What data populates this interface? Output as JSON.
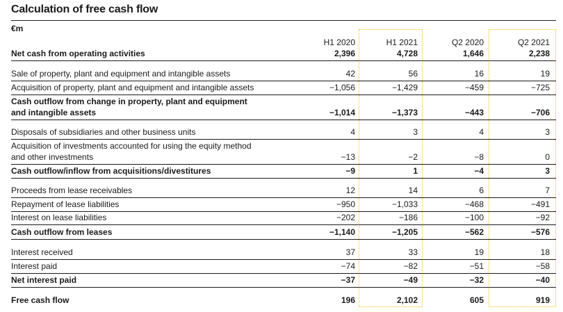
{
  "title": "Calculation of free cash flow",
  "unit": "€m",
  "columns": [
    "H1 2020",
    "H1 2021",
    "Q2 2020",
    "Q2 2021"
  ],
  "rows": [
    {
      "label": "Net cash from operating activities",
      "values": [
        "2,396",
        "4,728",
        "1,646",
        "2,238"
      ],
      "bold": true
    },
    {
      "label": "Sale of property, plant and equipment and intangible assets",
      "values": [
        "42",
        "56",
        "16",
        "19"
      ],
      "bold": false
    },
    {
      "label": "Acquisition of property, plant and equipment and intangible assets",
      "values": [
        "−1,056",
        "−1,429",
        "−459",
        "−725"
      ],
      "bold": false
    },
    {
      "label": "Cash outflow from change in property, plant and equipment",
      "label2": "and intangible assets",
      "values": [
        "−1,014",
        "−1,373",
        "−443",
        "−706"
      ],
      "bold": true
    },
    {
      "label": "Disposals of subsidiaries and other business units",
      "values": [
        "4",
        "3",
        "4",
        "3"
      ],
      "bold": false
    },
    {
      "label": "Acquisition of investments accounted for using the equity method",
      "label2": "and other investments",
      "values": [
        "−13",
        "−2",
        "−8",
        "0"
      ],
      "bold": false
    },
    {
      "label": "Cash outflow/inflow from acquisitions/divestitures",
      "values": [
        "−9",
        "1",
        "−4",
        "3"
      ],
      "bold": true
    },
    {
      "label": "Proceeds from lease receivables",
      "values": [
        "12",
        "14",
        "6",
        "7"
      ],
      "bold": false
    },
    {
      "label": "Repayment of lease liabilities",
      "values": [
        "−950",
        "−1,033",
        "−468",
        "−491"
      ],
      "bold": false
    },
    {
      "label": "Interest on lease liabilities",
      "values": [
        "−202",
        "−186",
        "−100",
        "−92"
      ],
      "bold": false
    },
    {
      "label": "Cash outflow from leases",
      "values": [
        "−1,140",
        "−1,205",
        "−562",
        "−576"
      ],
      "bold": true
    },
    {
      "label": "Interest received",
      "values": [
        "37",
        "33",
        "19",
        "18"
      ],
      "bold": false
    },
    {
      "label": "Interest paid",
      "values": [
        "−74",
        "−82",
        "−51",
        "−58"
      ],
      "bold": false
    },
    {
      "label": "Net interest paid",
      "values": [
        "−37",
        "−49",
        "−32",
        "−40"
      ],
      "bold": true
    },
    {
      "label": "Free cash flow",
      "values": [
        "196",
        "2,102",
        "605",
        "919"
      ],
      "bold": true
    }
  ]
}
